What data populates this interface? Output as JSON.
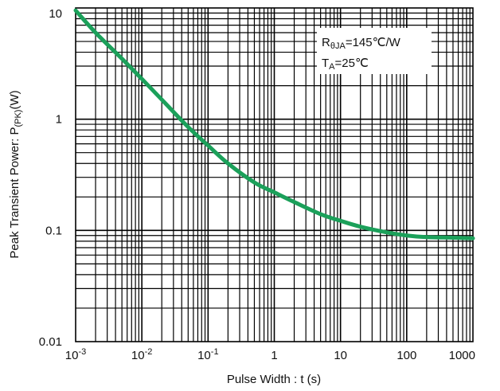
{
  "chart_data": {
    "type": "line",
    "title": "",
    "xlabel": "Pulse Width : t (s)",
    "ylabel": "Peak Transient Power: P(PK)(W)",
    "ylabel_parts": {
      "main": "Peak Transient Power: P",
      "sub": "(PK)",
      "unit": "(W)"
    },
    "xscale": "log",
    "yscale": "log",
    "xlim": [
      0.001,
      1000
    ],
    "ylim": [
      0.01,
      10
    ],
    "grid": true,
    "x_ticks": [
      {
        "value": 0.001,
        "base": "10",
        "exp": "-3"
      },
      {
        "value": 0.01,
        "base": "10",
        "exp": "-2"
      },
      {
        "value": 0.1,
        "base": "10",
        "exp": "-1"
      },
      {
        "value": 1,
        "base": "1",
        "exp": ""
      },
      {
        "value": 10,
        "base": "10",
        "exp": ""
      },
      {
        "value": 100,
        "base": "100",
        "exp": ""
      },
      {
        "value": 1000,
        "base": "1000",
        "exp": ""
      }
    ],
    "y_ticks": [
      {
        "value": 10,
        "label": "10"
      },
      {
        "value": 1,
        "label": "1"
      },
      {
        "value": 0.1,
        "label": "0.1"
      },
      {
        "value": 0.01,
        "label": "0.01"
      }
    ],
    "annotation": {
      "line1": {
        "r": "R",
        "sub": "θJA",
        "rest": "=145℃/W"
      },
      "line2": {
        "t": "T",
        "sub": "A",
        "rest": "=25℃"
      },
      "position": "top-right"
    },
    "series": [
      {
        "color": "#1ba05a",
        "x": [
          0.001,
          0.002,
          0.005,
          0.01,
          0.02,
          0.05,
          0.1,
          0.2,
          0.5,
          1,
          2,
          5,
          10,
          20,
          50,
          100,
          200,
          500,
          1000
        ],
        "y": [
          9.5,
          6.0,
          3.5,
          2.3,
          1.5,
          0.85,
          0.58,
          0.4,
          0.27,
          0.22,
          0.18,
          0.14,
          0.122,
          0.108,
          0.096,
          0.09,
          0.087,
          0.086,
          0.085
        ]
      }
    ]
  }
}
